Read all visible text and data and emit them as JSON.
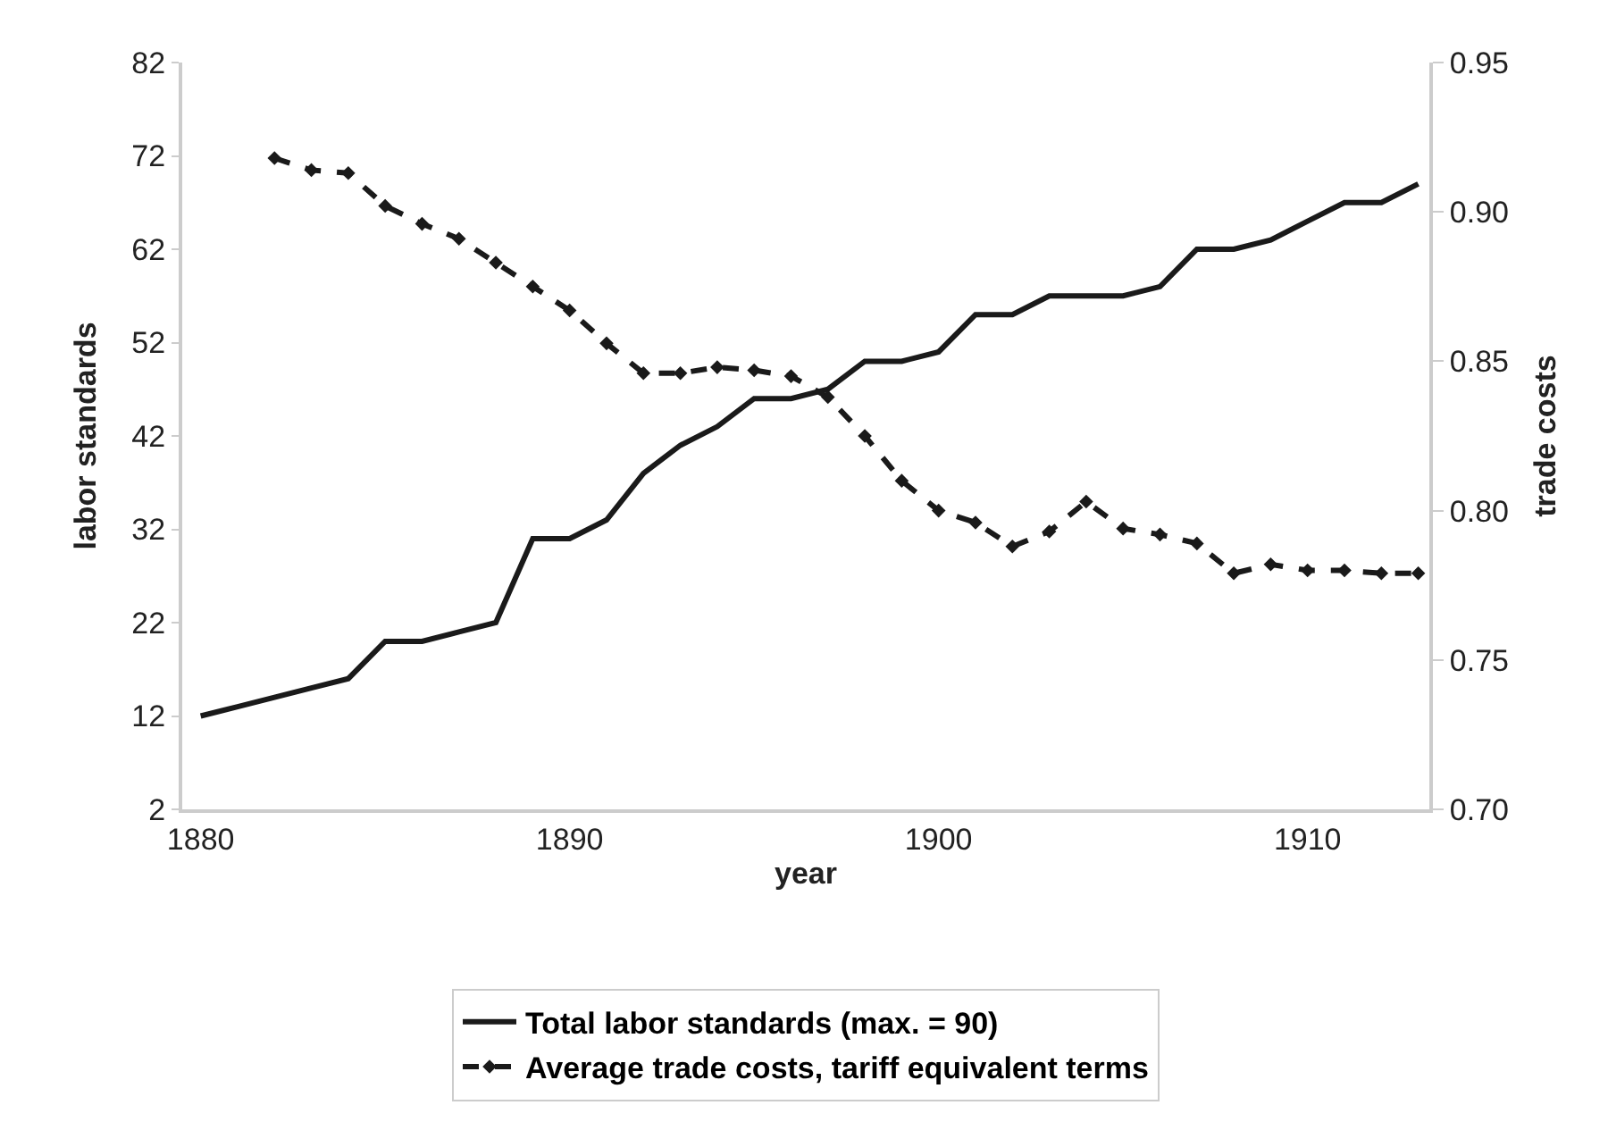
{
  "chart_data": {
    "type": "line",
    "xlabel": "year",
    "ylabel": "labor standards",
    "y2label": "trade costs",
    "xlim": [
      1879.5,
      1913.3
    ],
    "xticks": [
      1880,
      1890,
      1900,
      1910
    ],
    "ylim": [
      2,
      82
    ],
    "yticks": [
      2,
      12,
      22,
      32,
      42,
      52,
      62,
      72,
      82
    ],
    "y2lim": [
      0.7,
      0.95
    ],
    "y2ticks": [
      {
        "value": 0.7,
        "label": "0.70"
      },
      0.75,
      {
        "value": 0.8,
        "label": "0.80"
      },
      0.85,
      {
        "value": 0.9,
        "label": "0.90"
      },
      0.95
    ],
    "legend": "bottom",
    "series": [
      {
        "name": "Total labor standards (max. = 90)",
        "color": "#1a1a1a",
        "marker": "none",
        "line_style": "solid",
        "x": [
          1880,
          1881,
          1882,
          1883,
          1884,
          1885,
          1886,
          1887,
          1888,
          1889,
          1890,
          1891,
          1892,
          1893,
          1894,
          1895,
          1896,
          1897,
          1898,
          1899,
          1900,
          1901,
          1902,
          1903,
          1904,
          1905,
          1906,
          1907,
          1908,
          1909,
          1910,
          1911,
          1912,
          1913
        ],
        "values": [
          12,
          13,
          14,
          15,
          16,
          20,
          20,
          21,
          22,
          31,
          31,
          33,
          38,
          41,
          43,
          46,
          46,
          47,
          50,
          50,
          51,
          55,
          55,
          57,
          57,
          57,
          58,
          62,
          62,
          63,
          65,
          67,
          67,
          69
        ]
      },
      {
        "name": "Average trade costs, tariff equivalent terms",
        "color": "#1a1a1a",
        "marker": "diamond",
        "line_style": "dashed",
        "axis": "y2",
        "x": [
          1882,
          1883,
          1884,
          1885,
          1886,
          1887,
          1888,
          1889,
          1890,
          1891,
          1892,
          1893,
          1894,
          1895,
          1896,
          1897,
          1898,
          1899,
          1900,
          1901,
          1902,
          1903,
          1904,
          1905,
          1906,
          1907,
          1908,
          1909,
          1910,
          1911,
          1912,
          1913
        ],
        "values": [
          0.918,
          0.914,
          0.913,
          0.902,
          0.896,
          0.891,
          0.883,
          0.875,
          0.867,
          0.856,
          0.846,
          0.846,
          0.848,
          0.847,
          0.845,
          0.838,
          0.825,
          0.81,
          0.8,
          0.796,
          0.788,
          0.793,
          0.803,
          0.794,
          0.792,
          0.789,
          0.779,
          0.782,
          0.78,
          0.78,
          0.779,
          0.779
        ]
      }
    ]
  }
}
